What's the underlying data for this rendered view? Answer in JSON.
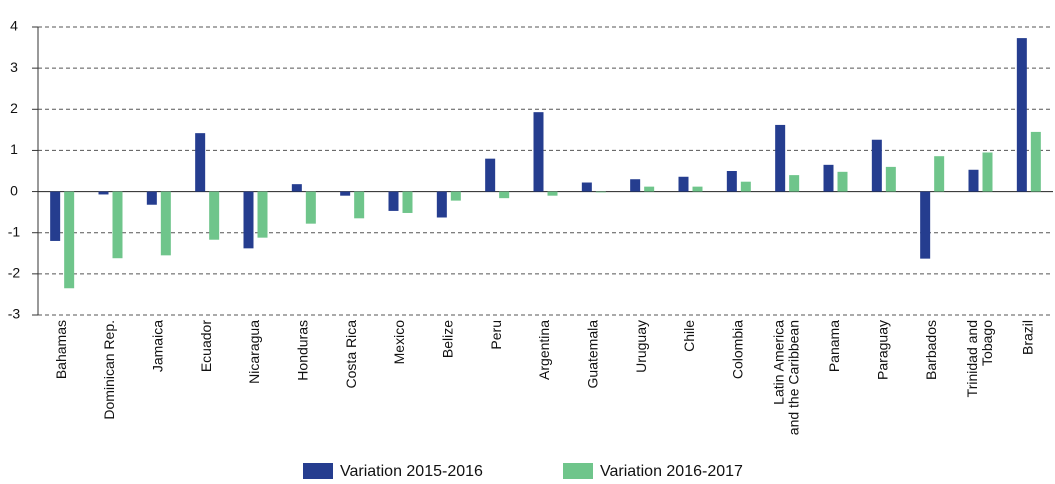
{
  "chart_data": {
    "type": "bar",
    "categories": [
      "Bahamas",
      "Dominican Rep.",
      "Jamaica",
      "Ecuador",
      "Nicaragua",
      "Honduras",
      "Costa Rica",
      "Mexico",
      "Belize",
      "Peru",
      "Argentina",
      "Guatemala",
      "Uruguay",
      "Chile",
      "Colombia",
      "Latin America and the Caribbean",
      "Panama",
      "Paraguay",
      "Barbados",
      "Trinidad and Tobago",
      "Brazil"
    ],
    "series": [
      {
        "name": "Variation 2015-2016",
        "color": "#253d8f",
        "values": [
          -1.2,
          -0.07,
          -0.32,
          1.42,
          -1.38,
          0.18,
          -0.1,
          -0.47,
          -0.63,
          0.8,
          1.93,
          0.22,
          0.3,
          0.36,
          0.5,
          1.62,
          0.65,
          1.26,
          -1.63,
          0.53,
          3.73
        ]
      },
      {
        "name": "Variation 2016-2017",
        "color": "#6fc58b",
        "values": [
          -2.35,
          -1.62,
          -1.55,
          -1.17,
          -1.12,
          -0.78,
          -0.65,
          -0.52,
          -0.22,
          -0.16,
          -0.1,
          -0.02,
          0.12,
          0.12,
          0.24,
          0.4,
          0.48,
          0.6,
          0.86,
          0.95,
          1.45
        ]
      }
    ],
    "ylim": [
      -3,
      4
    ],
    "yticks": [
      -3,
      -2,
      -1,
      0,
      1,
      2,
      3,
      4
    ],
    "grid": true,
    "legend": "bottom"
  }
}
